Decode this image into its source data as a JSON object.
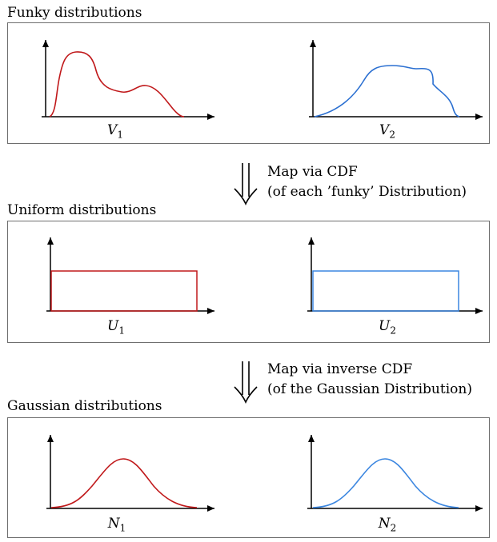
{
  "sections": [
    {
      "title": "Funky distributions",
      "left": {
        "var": "V",
        "sub": "1",
        "color": "#c0181a"
      },
      "right": {
        "var": "V",
        "sub": "2",
        "color": "#2a6fd1"
      }
    },
    {
      "title": "Uniform distributions",
      "left": {
        "var": "U",
        "sub": "1",
        "color": "#c0181a"
      },
      "right": {
        "var": "U",
        "sub": "2",
        "color": "#3b86e0"
      }
    },
    {
      "title": "Gaussian distributions",
      "left": {
        "var": "N",
        "sub": "1",
        "color": "#c0181a"
      },
      "right": {
        "var": "N",
        "sub": "2",
        "color": "#3b86e0"
      }
    }
  ],
  "mappings": [
    {
      "line1": "Map via CDF",
      "line2": "(of each ’funky’ Distribution)",
      "icon": "double-down-arrow-icon"
    },
    {
      "line1": "Map via inverse CDF",
      "line2": "(of the Gaussian Distribution)",
      "icon": "double-down-arrow-icon"
    }
  ]
}
